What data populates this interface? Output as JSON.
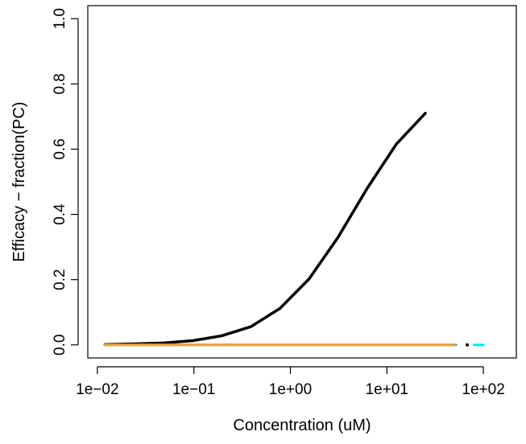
{
  "chart_data": {
    "type": "line",
    "title": "",
    "xlabel": "Concentration (uM)",
    "ylabel": "Efficacy − fraction(PC)",
    "x_scale": "log10",
    "xlim": [
      0.00796,
      219.5
    ],
    "ylim": [
      -0.04,
      1.04
    ],
    "x_ticks": [
      {
        "value": 0.01,
        "label": "1e−02"
      },
      {
        "value": 0.1,
        "label": "1e−01"
      },
      {
        "value": 1,
        "label": "1e+00"
      },
      {
        "value": 10,
        "label": "1e+01"
      },
      {
        "value": 100,
        "label": "1e+02"
      }
    ],
    "y_ticks": [
      {
        "value": 0.0,
        "label": "0.0"
      },
      {
        "value": 0.2,
        "label": "0.2"
      },
      {
        "value": 0.4,
        "label": "0.4"
      },
      {
        "value": 0.6,
        "label": "0.6"
      },
      {
        "value": 0.8,
        "label": "0.8"
      },
      {
        "value": 1.0,
        "label": "1.0"
      }
    ],
    "grid": false,
    "legend": null,
    "series": [
      {
        "color": "#000000",
        "style": "solid",
        "width": 3.5,
        "x": [
          0.012,
          0.0244,
          0.0488,
          0.0977,
          0.195,
          0.391,
          0.781,
          1.56,
          3.12,
          6.25,
          12.5,
          25
        ],
        "y": [
          0.001,
          0.003,
          0.006,
          0.013,
          0.028,
          0.056,
          0.112,
          0.202,
          0.33,
          0.48,
          0.615,
          0.71
        ]
      },
      {
        "color": "#00bcd4",
        "style": "solid",
        "width": 3,
        "x": [
          0.012,
          52
        ],
        "y": [
          0.0,
          0.0
        ]
      },
      {
        "color": "#00e5ee",
        "style": "solid",
        "width": 3,
        "x": [
          80,
          100
        ],
        "y": [
          0.0,
          0.0
        ]
      },
      {
        "color": "#e8a33d",
        "style": "solid",
        "width": 3,
        "x": [
          0.012,
          50
        ],
        "y": [
          0.0,
          0.0
        ]
      },
      {
        "color": "#000000",
        "style": "point",
        "width": 3,
        "x": [
          68
        ],
        "y": [
          0.0
        ]
      }
    ]
  }
}
